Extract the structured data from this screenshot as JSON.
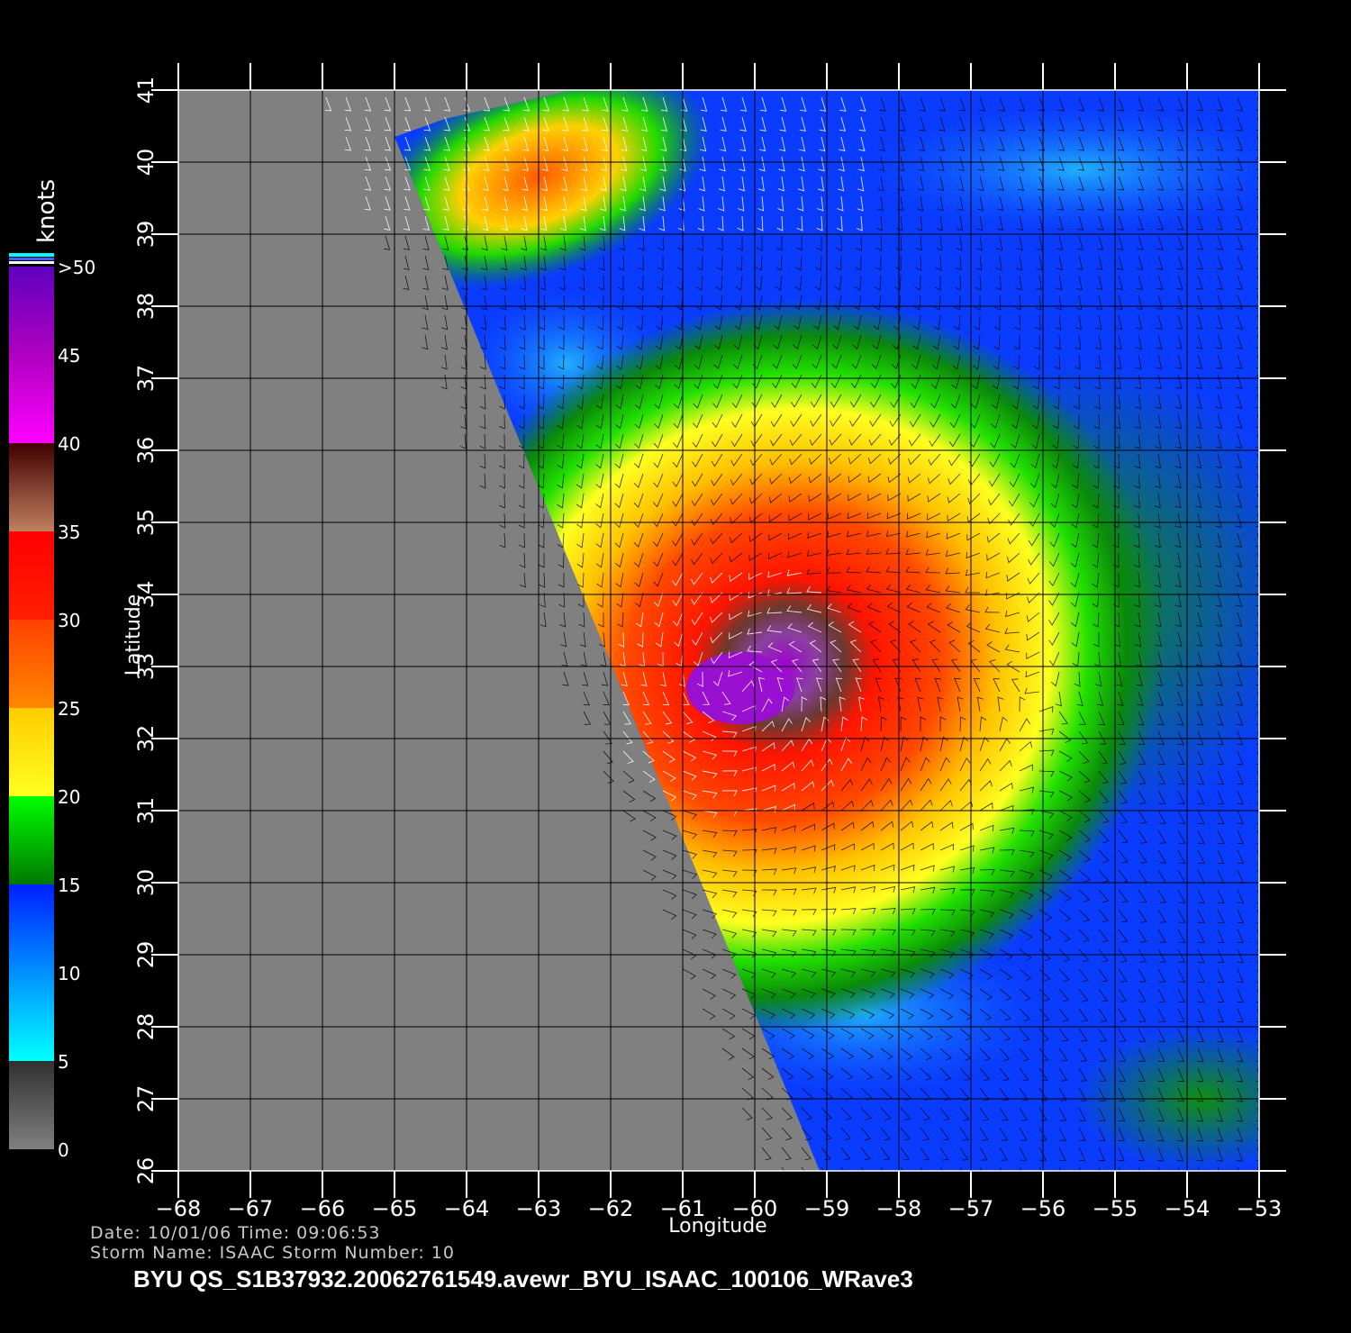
{
  "map": {
    "x_axis": {
      "title": "Longitude",
      "range": [
        -68,
        -53
      ],
      "ticks": [
        "−68",
        "−67",
        "−66",
        "−65",
        "−64",
        "−63",
        "−62",
        "−61",
        "−60",
        "−59",
        "−58",
        "−57",
        "−56",
        "−55",
        "−54",
        "−53"
      ]
    },
    "y_axis": {
      "title": "Latitude",
      "range": [
        26,
        41
      ],
      "ticks": [
        "26",
        "27",
        "28",
        "29",
        "30",
        "31",
        "32",
        "33",
        "34",
        "35",
        "36",
        "37",
        "38",
        "39",
        "40",
        "41"
      ]
    },
    "no_data_color": "#808080",
    "storm_center": {
      "lon": -60.2,
      "lat": 32.7
    }
  },
  "colorbar": {
    "unit_label": "knots",
    "labels": [
      "0",
      "5",
      "10",
      "15",
      "20",
      "25",
      "30",
      "35",
      "40",
      "45",
      ">50"
    ],
    "stops": [
      {
        "knots": 0,
        "color": "#808080"
      },
      {
        "knots": 5,
        "color": "#303030"
      },
      {
        "knots": 5,
        "color": "#00ffff"
      },
      {
        "knots": 10,
        "color": "#0090ff"
      },
      {
        "knots": 15,
        "color": "#0020ff"
      },
      {
        "knots": 15,
        "color": "#007800"
      },
      {
        "knots": 20,
        "color": "#00ff00"
      },
      {
        "knots": 20,
        "color": "#ffff20"
      },
      {
        "knots": 25,
        "color": "#ffcc00"
      },
      {
        "knots": 25,
        "color": "#ff8800"
      },
      {
        "knots": 30,
        "color": "#ff4000"
      },
      {
        "knots": 30,
        "color": "#ff2000"
      },
      {
        "knots": 35,
        "color": "#ff0000"
      },
      {
        "knots": 35,
        "color": "#c08060"
      },
      {
        "knots": 40,
        "color": "#400000"
      },
      {
        "knots": 40,
        "color": "#ff00ff"
      },
      {
        "knots": 45,
        "color": "#b000c0"
      },
      {
        "knots": 50,
        "color": "#6000c0"
      }
    ]
  },
  "footer": {
    "date_line": "Date: 10/01/06   Time: 09:06:53",
    "storm_line": "Storm  Name: ISAAC    Storm  Number: 10",
    "file_line": "BYU  QS_S1B37932.20062761549.avewr_BYU_ISAAC_100106_WRave3"
  }
}
